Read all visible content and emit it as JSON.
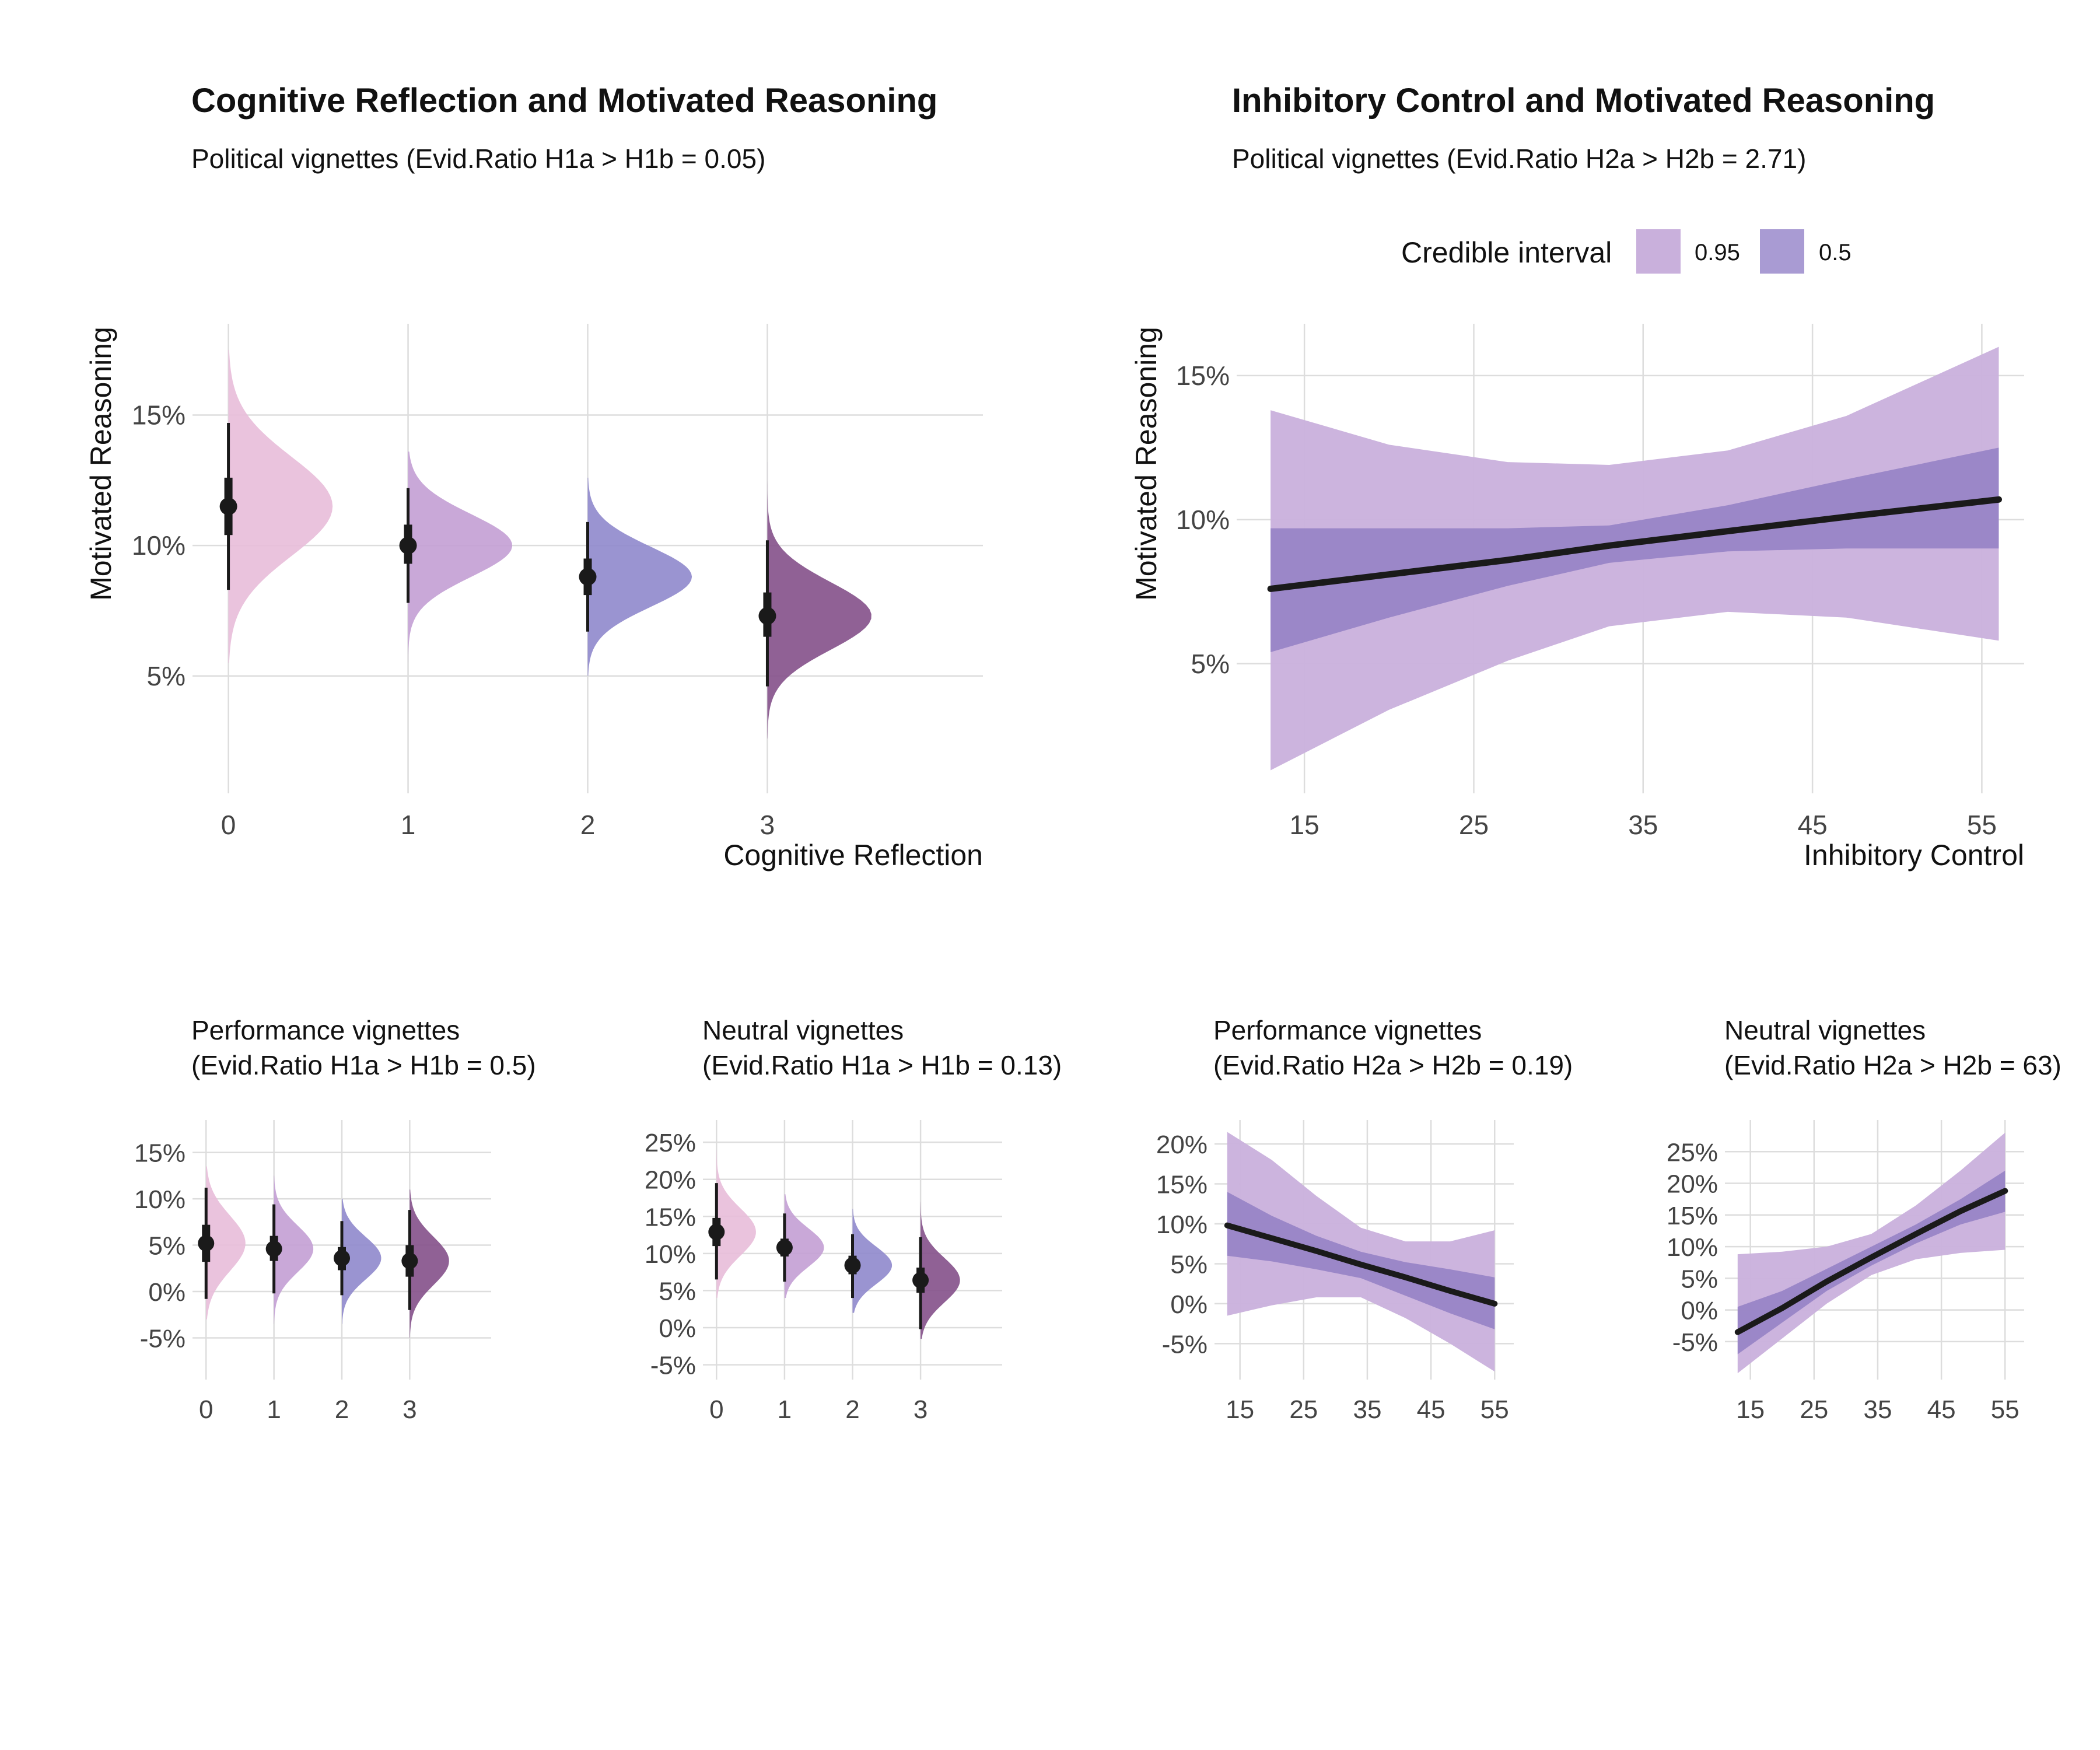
{
  "colors": {
    "cr_levels": [
      "#e8bcd9",
      "#c39ed4",
      "#8f88cc",
      "#84508a"
    ],
    "ci95": "#c9b0dc",
    "ci50": "#8f7cc2",
    "line": "#1a1a1a",
    "grid": "#dddddd"
  },
  "legend": {
    "title": "Credible interval",
    "items": [
      {
        "label": "0.95",
        "color": "#c9b0dc"
      },
      {
        "label": "0.5",
        "color": "#a99bd3"
      }
    ]
  },
  "chart_data": [
    {
      "id": "cr_political",
      "type": "half-violin",
      "title": "Cognitive Reflection and Motivated Reasoning",
      "subtitle": [
        "Political vignettes (Evid.Ratio H1a > H1b = 0.05)"
      ],
      "xlabel": "Cognitive Reflection",
      "ylabel": "Motivated Reasoning",
      "categories": [
        "0",
        "1",
        "2",
        "3"
      ],
      "xlim": [
        -0.2,
        4.2
      ],
      "ylim": [
        0.5,
        18.5
      ],
      "yticks": [
        5,
        10,
        15
      ],
      "ytick_labels": [
        "5%",
        "10%",
        "15%"
      ],
      "points": [
        {
          "x": 0,
          "mean": 11.5,
          "q25": 10.4,
          "q75": 12.6,
          "q025": 8.3,
          "q975": 14.7,
          "sd": 1.9,
          "lo": 5.5,
          "hi": 17.5
        },
        {
          "x": 1,
          "mean": 10.0,
          "q25": 9.3,
          "q75": 10.8,
          "q025": 7.8,
          "q975": 12.2,
          "sd": 1.2,
          "lo": 5.5,
          "hi": 13.6
        },
        {
          "x": 2,
          "mean": 8.8,
          "q25": 8.1,
          "q75": 9.5,
          "q025": 6.7,
          "q975": 10.9,
          "sd": 1.15,
          "lo": 5.0,
          "hi": 12.6
        },
        {
          "x": 3,
          "mean": 7.3,
          "q25": 6.5,
          "q75": 8.2,
          "q025": 4.6,
          "q975": 10.2,
          "sd": 1.3,
          "lo": 2.6,
          "hi": 13.2
        }
      ]
    },
    {
      "id": "ic_political",
      "type": "area",
      "title": "Inhibitory Control and Motivated Reasoning",
      "subtitle": [
        "Political vignettes (Evid.Ratio H2a > H2b = 2.71)"
      ],
      "xlabel": "Inhibitory Control",
      "ylabel": "Motivated Reasoning",
      "xlim": [
        11,
        57.5
      ],
      "ylim": [
        0.5,
        16.8
      ],
      "xticks": [
        15,
        25,
        35,
        45,
        55
      ],
      "yticks": [
        5,
        10,
        15
      ],
      "ytick_labels": [
        "5%",
        "10%",
        "15%"
      ],
      "x": [
        13,
        20,
        27,
        33,
        40,
        47,
        56
      ],
      "mean": [
        7.6,
        8.1,
        8.6,
        9.1,
        9.6,
        10.1,
        10.7
      ],
      "ci95_lo": [
        1.3,
        3.4,
        5.1,
        6.3,
        6.8,
        6.6,
        5.8
      ],
      "ci95_hi": [
        13.8,
        12.6,
        12.0,
        11.9,
        12.4,
        13.6,
        16.0
      ],
      "ci50_lo": [
        5.4,
        6.6,
        7.7,
        8.5,
        8.9,
        9.0,
        9.0
      ],
      "ci50_hi": [
        9.7,
        9.7,
        9.7,
        9.8,
        10.5,
        11.4,
        12.5
      ]
    },
    {
      "id": "cr_performance",
      "type": "half-violin",
      "title": "",
      "subtitle": [
        "Performance vignettes",
        "(Evid.Ratio H1a > H1b = 0.5)"
      ],
      "xlabel": "",
      "ylabel": "",
      "categories": [
        "0",
        "1",
        "2",
        "3"
      ],
      "xlim": [
        -0.2,
        4.2
      ],
      "ylim": [
        -9.5,
        18.5
      ],
      "yticks": [
        -5,
        0,
        5,
        10,
        15
      ],
      "ytick_labels": [
        "-5%",
        "0%",
        "5%",
        "10%",
        "15%"
      ],
      "points": [
        {
          "x": 0,
          "mean": 5.2,
          "q25": 3.2,
          "q75": 7.2,
          "q025": -0.8,
          "q975": 11.2,
          "sd": 3.0,
          "lo": -3.0,
          "hi": 13.5
        },
        {
          "x": 1,
          "mean": 4.6,
          "q25": 3.3,
          "q75": 6.0,
          "q025": -0.2,
          "q975": 9.4,
          "sd": 2.5,
          "lo": -3.5,
          "hi": 12.5
        },
        {
          "x": 2,
          "mean": 3.6,
          "q25": 2.3,
          "q75": 4.8,
          "q025": -0.4,
          "q975": 7.6,
          "sd": 2.3,
          "lo": -3.5,
          "hi": 10.0
        },
        {
          "x": 3,
          "mean": 3.3,
          "q25": 1.6,
          "q75": 5.0,
          "q025": -2.0,
          "q975": 8.8,
          "sd": 2.6,
          "lo": -5.0,
          "hi": 11.0
        }
      ]
    },
    {
      "id": "cr_neutral",
      "type": "half-violin",
      "title": "",
      "subtitle": [
        "Neutral vignettes",
        "(Evid.Ratio H1a > H1b = 0.13)"
      ],
      "xlabel": "",
      "ylabel": "",
      "categories": [
        "0",
        "1",
        "2",
        "3"
      ],
      "xlim": [
        -0.2,
        4.2
      ],
      "ylim": [
        -7,
        28
      ],
      "yticks": [
        -5,
        0,
        5,
        10,
        15,
        20,
        25
      ],
      "ytick_labels": [
        "-5%",
        "0%",
        "5%",
        "10%",
        "15%",
        "20%",
        "25%"
      ],
      "points": [
        {
          "x": 0,
          "mean": 12.9,
          "q25": 11.0,
          "q75": 14.8,
          "q025": 6.5,
          "q975": 19.5,
          "sd": 3.2,
          "lo": 4.0,
          "hi": 24.0
        },
        {
          "x": 1,
          "mean": 10.8,
          "q25": 9.6,
          "q75": 12.0,
          "q025": 6.2,
          "q975": 15.4,
          "sd": 2.6,
          "lo": 4.0,
          "hi": 18.0
        },
        {
          "x": 2,
          "mean": 8.4,
          "q25": 7.2,
          "q75": 9.7,
          "q025": 4.0,
          "q975": 12.6,
          "sd": 2.5,
          "lo": 2.0,
          "hi": 16.0
        },
        {
          "x": 3,
          "mean": 6.4,
          "q25": 4.7,
          "q75": 8.1,
          "q025": -0.2,
          "q975": 12.2,
          "sd": 3.0,
          "lo": -1.5,
          "hi": 17.0
        }
      ]
    },
    {
      "id": "ic_performance",
      "type": "area",
      "title": "",
      "subtitle": [
        "Performance vignettes",
        "(Evid.Ratio H2a > H2b = 0.19)"
      ],
      "xlabel": "",
      "ylabel": "",
      "xlim": [
        11,
        58
      ],
      "ylim": [
        -9.5,
        23
      ],
      "xticks": [
        15,
        25,
        35,
        45,
        55
      ],
      "yticks": [
        -5,
        0,
        5,
        10,
        15,
        20
      ],
      "ytick_labels": [
        "-5%",
        "0%",
        "5%",
        "10%",
        "15%",
        "20%"
      ],
      "x": [
        13,
        20,
        27,
        34,
        41,
        48,
        55
      ],
      "mean": [
        9.8,
        8.2,
        6.6,
        4.9,
        3.3,
        1.6,
        0.0
      ],
      "ci95_lo": [
        -1.5,
        -0.2,
        0.8,
        0.8,
        -1.8,
        -5.0,
        -8.5
      ],
      "ci95_hi": [
        21.5,
        18.0,
        13.5,
        9.5,
        7.8,
        7.8,
        9.2
      ],
      "ci50_lo": [
        6.0,
        5.3,
        4.3,
        3.2,
        1.0,
        -1.2,
        -3.2
      ],
      "ci50_hi": [
        14.0,
        11.0,
        8.5,
        6.5,
        5.2,
        4.3,
        3.3
      ]
    },
    {
      "id": "ic_neutral",
      "type": "area",
      "title": "",
      "subtitle": [
        "Neutral vignettes",
        "(Evid.Ratio H2a > H2b = 63)"
      ],
      "xlabel": "",
      "ylabel": "",
      "xlim": [
        11,
        58
      ],
      "ylim": [
        -11,
        30
      ],
      "xticks": [
        15,
        25,
        35,
        45,
        55
      ],
      "yticks": [
        -5,
        0,
        5,
        10,
        15,
        20,
        25
      ],
      "ytick_labels": [
        "-5%",
        "0%",
        "5%",
        "10%",
        "15%",
        "20%",
        "25%"
      ],
      "x": [
        13,
        20,
        27,
        34,
        41,
        48,
        55
      ],
      "mean": [
        -3.5,
        0.3,
        4.5,
        8.3,
        12.0,
        15.6,
        18.8
      ],
      "ci95_lo": [
        -10.0,
        -4.5,
        1.0,
        5.5,
        8.0,
        9.0,
        9.5
      ],
      "ci95_hi": [
        8.8,
        9.2,
        10.0,
        12.0,
        16.5,
        22.0,
        28.0
      ],
      "ci50_lo": [
        -7.0,
        -2.0,
        3.0,
        7.0,
        10.5,
        13.5,
        15.5
      ],
      "ci50_hi": [
        0.5,
        3.0,
        6.5,
        10.0,
        13.5,
        17.5,
        22.0
      ]
    }
  ]
}
